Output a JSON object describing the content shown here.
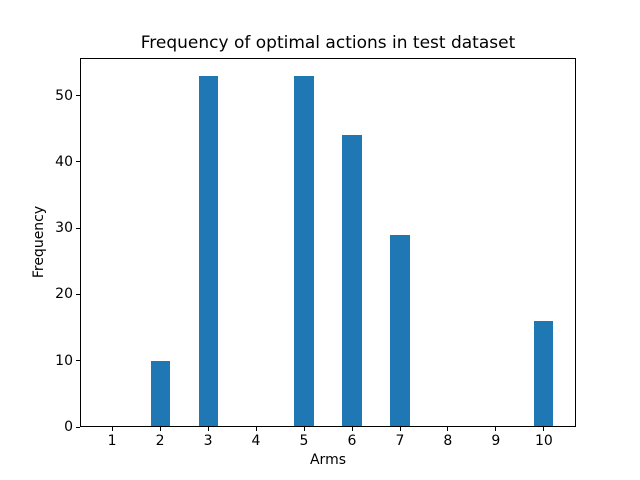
{
  "figure": {
    "background": "#ffffff",
    "text_color": "#000000"
  },
  "chart_data": {
    "type": "bar",
    "title": "Frequency of optimal actions in test dataset",
    "xlabel": "Arms",
    "ylabel": "Frequency",
    "categories": [
      1,
      2,
      3,
      4,
      5,
      6,
      7,
      8,
      9,
      10
    ],
    "values": [
      0,
      10,
      53,
      0,
      53,
      44,
      29,
      0,
      0,
      16
    ],
    "bar_color": "#1f77b4",
    "bar_width": 0.4,
    "xlim": [
      0.33,
      10.67
    ],
    "ylim": [
      0,
      55.65
    ],
    "xticks": [
      "1",
      "2",
      "3",
      "4",
      "5",
      "6",
      "7",
      "8",
      "9",
      "10"
    ],
    "yticks": [
      "0",
      "10",
      "20",
      "30",
      "40",
      "50"
    ],
    "grid": false,
    "legend_position": "none"
  }
}
